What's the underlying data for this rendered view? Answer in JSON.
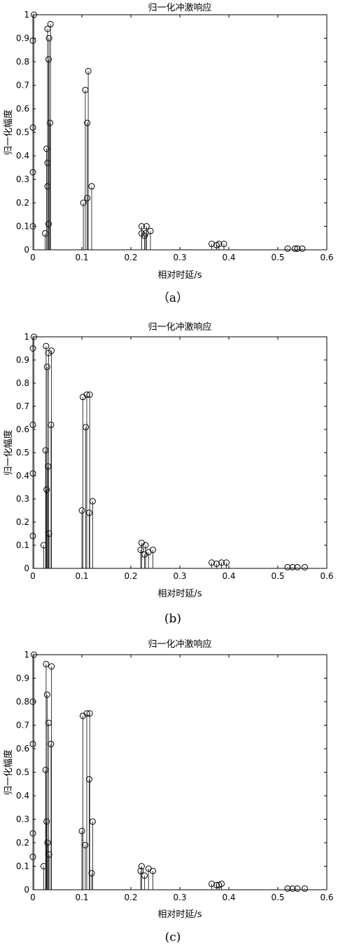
{
  "chart_data": [
    {
      "type": "stem",
      "caption": "（a）",
      "title": "归一化冲激响应",
      "xlabel": "相对时延/s",
      "ylabel": "归一化幅度",
      "xlim": [
        0,
        0.6
      ],
      "ylim": [
        0,
        1
      ],
      "xticks": [
        "0",
        "0.1",
        "0.2",
        "0.3",
        "0.4",
        "0.5",
        "0.6"
      ],
      "yticks": [
        "0",
        "0.1",
        "0.2",
        "0.3",
        "0.4",
        "0.5",
        "0.6",
        "0.7",
        "0.8",
        "0.9",
        "1"
      ],
      "grid": false,
      "points": [
        [
          0.0,
          0.1
        ],
        [
          0.0,
          0.33
        ],
        [
          0.0,
          0.52
        ],
        [
          0.0,
          0.89
        ],
        [
          0.002,
          1.0
        ],
        [
          0.025,
          0.07
        ],
        [
          0.028,
          0.43
        ],
        [
          0.03,
          0.94
        ],
        [
          0.03,
          0.37
        ],
        [
          0.03,
          0.27
        ],
        [
          0.032,
          0.11
        ],
        [
          0.032,
          0.81
        ],
        [
          0.033,
          0.9
        ],
        [
          0.035,
          0.54
        ],
        [
          0.036,
          0.96
        ],
        [
          0.103,
          0.2
        ],
        [
          0.107,
          0.68
        ],
        [
          0.111,
          0.22
        ],
        [
          0.111,
          0.54
        ],
        [
          0.113,
          0.76
        ],
        [
          0.12,
          0.27
        ],
        [
          0.222,
          0.1
        ],
        [
          0.222,
          0.07
        ],
        [
          0.228,
          0.06
        ],
        [
          0.23,
          0.07
        ],
        [
          0.232,
          0.1
        ],
        [
          0.24,
          0.08
        ],
        [
          0.365,
          0.025
        ],
        [
          0.375,
          0.02
        ],
        [
          0.38,
          0.025
        ],
        [
          0.39,
          0.025
        ],
        [
          0.52,
          0.005
        ],
        [
          0.535,
          0.005
        ],
        [
          0.54,
          0.005
        ],
        [
          0.55,
          0.005
        ]
      ]
    },
    {
      "type": "stem",
      "caption": "(b)",
      "title": "归一化冲激响应",
      "xlabel": "相对时延/s",
      "ylabel": "归一化幅度",
      "xlim": [
        0,
        0.6
      ],
      "ylim": [
        0,
        1
      ],
      "xticks": [
        "0",
        "0.1",
        "0.2",
        "0.3",
        "0.4",
        "0.5",
        "0.6"
      ],
      "yticks": [
        "0",
        "0.1",
        "0.2",
        "0.3",
        "0.4",
        "0.5",
        "0.6",
        "0.7",
        "0.8",
        "0.9",
        "1"
      ],
      "grid": false,
      "points": [
        [
          0.0,
          0.14
        ],
        [
          0.0,
          0.41
        ],
        [
          0.0,
          0.62
        ],
        [
          0.0,
          0.95
        ],
        [
          0.002,
          1.0
        ],
        [
          0.022,
          0.1
        ],
        [
          0.026,
          0.51
        ],
        [
          0.027,
          0.96
        ],
        [
          0.028,
          0.34
        ],
        [
          0.029,
          0.87
        ],
        [
          0.031,
          0.44
        ],
        [
          0.032,
          0.93
        ],
        [
          0.033,
          0.15
        ],
        [
          0.037,
          0.62
        ],
        [
          0.038,
          0.94
        ],
        [
          0.1,
          0.25
        ],
        [
          0.102,
          0.74
        ],
        [
          0.108,
          0.61
        ],
        [
          0.11,
          0.75
        ],
        [
          0.115,
          0.24
        ],
        [
          0.116,
          0.75
        ],
        [
          0.122,
          0.29
        ],
        [
          0.22,
          0.08
        ],
        [
          0.222,
          0.11
        ],
        [
          0.228,
          0.06
        ],
        [
          0.23,
          0.1
        ],
        [
          0.236,
          0.07
        ],
        [
          0.245,
          0.08
        ],
        [
          0.365,
          0.025
        ],
        [
          0.375,
          0.02
        ],
        [
          0.385,
          0.025
        ],
        [
          0.395,
          0.025
        ],
        [
          0.52,
          0.005
        ],
        [
          0.53,
          0.005
        ],
        [
          0.54,
          0.005
        ],
        [
          0.555,
          0.005
        ]
      ]
    },
    {
      "type": "stem",
      "caption": "(c)",
      "title": "归一化冲激响应",
      "xlabel": "相对时延/s",
      "ylabel": "归一化幅度",
      "xlim": [
        0,
        0.6
      ],
      "ylim": [
        0,
        1
      ],
      "xticks": [
        "0",
        "0.1",
        "0.2",
        "0.3",
        "0.4",
        "0.5",
        "0.6"
      ],
      "yticks": [
        "0",
        "0.1",
        "0.2",
        "0.3",
        "0.4",
        "0.5",
        "0.6",
        "0.7",
        "0.8",
        "0.9",
        "1"
      ],
      "grid": false,
      "points": [
        [
          0.0,
          0.14
        ],
        [
          0.0,
          0.24
        ],
        [
          0.0,
          0.62
        ],
        [
          0.0,
          0.8
        ],
        [
          0.002,
          1.0
        ],
        [
          0.022,
          0.1
        ],
        [
          0.026,
          0.51
        ],
        [
          0.027,
          0.96
        ],
        [
          0.028,
          0.29
        ],
        [
          0.029,
          0.83
        ],
        [
          0.03,
          0.2
        ],
        [
          0.032,
          0.71
        ],
        [
          0.033,
          0.15
        ],
        [
          0.037,
          0.62
        ],
        [
          0.038,
          0.95
        ],
        [
          0.1,
          0.25
        ],
        [
          0.102,
          0.74
        ],
        [
          0.107,
          0.19
        ],
        [
          0.11,
          0.75
        ],
        [
          0.115,
          0.47
        ],
        [
          0.116,
          0.75
        ],
        [
          0.12,
          0.07
        ],
        [
          0.122,
          0.29
        ],
        [
          0.22,
          0.08
        ],
        [
          0.222,
          0.1
        ],
        [
          0.228,
          0.06
        ],
        [
          0.236,
          0.09
        ],
        [
          0.245,
          0.08
        ],
        [
          0.365,
          0.025
        ],
        [
          0.375,
          0.02
        ],
        [
          0.38,
          0.02
        ],
        [
          0.385,
          0.025
        ],
        [
          0.52,
          0.005
        ],
        [
          0.53,
          0.005
        ],
        [
          0.54,
          0.005
        ],
        [
          0.555,
          0.005
        ]
      ]
    }
  ]
}
